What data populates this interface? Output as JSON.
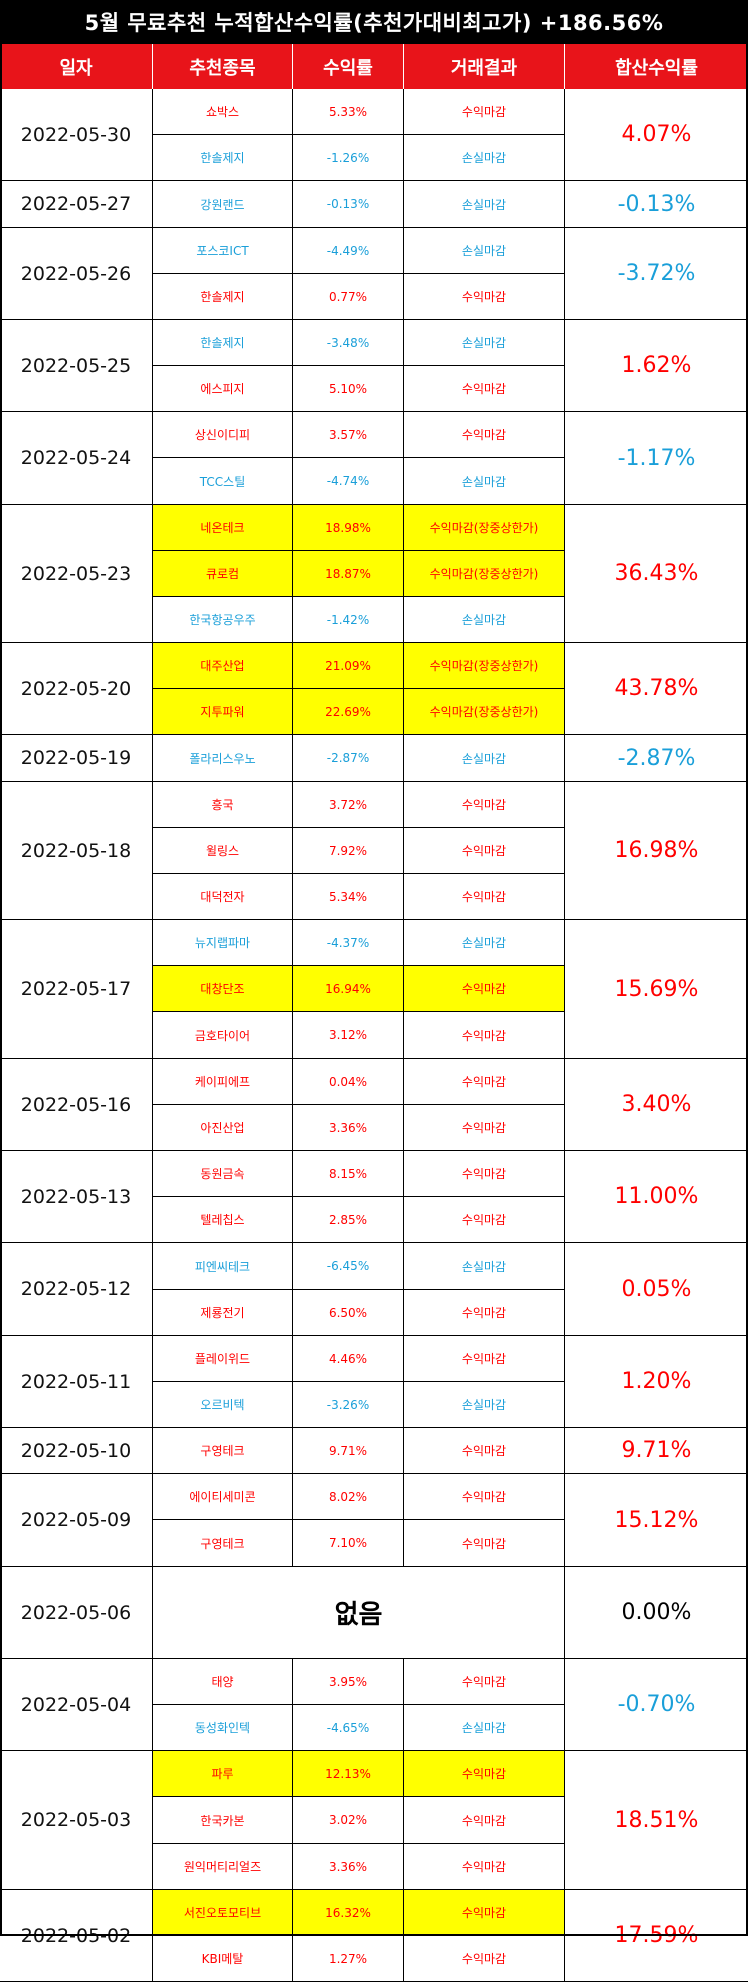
{
  "title": "5월 무료추천 누적합산수익률(추천가대비최고가) +186.56%",
  "headers": [
    "일자",
    "추천종목",
    "수익률",
    "거래결과",
    "합산수익률"
  ],
  "colors": {
    "header_bg": "#e8141a",
    "profit": "#ff0000",
    "loss": "#1a9fd9",
    "highlight": "#ffff00"
  },
  "groups": [
    {
      "date": "2022-05-30",
      "total": "4.07%",
      "total_color": "red",
      "rows": [
        {
          "stock": "쇼박스",
          "rate": "5.33%",
          "result": "수익마감",
          "color": "red",
          "hl": false
        },
        {
          "stock": "한솔제지",
          "rate": "-1.26%",
          "result": "손실마감",
          "color": "blue",
          "hl": false
        }
      ]
    },
    {
      "date": "2022-05-27",
      "total": "-0.13%",
      "total_color": "blue",
      "rows": [
        {
          "stock": "강원랜드",
          "rate": "-0.13%",
          "result": "손실마감",
          "color": "blue",
          "hl": false
        }
      ]
    },
    {
      "date": "2022-05-26",
      "total": "-3.72%",
      "total_color": "blue",
      "rows": [
        {
          "stock": "포스코ICT",
          "rate": "-4.49%",
          "result": "손실마감",
          "color": "blue",
          "hl": false
        },
        {
          "stock": "한솔제지",
          "rate": "0.77%",
          "result": "수익마감",
          "color": "red",
          "hl": false
        }
      ]
    },
    {
      "date": "2022-05-25",
      "total": "1.62%",
      "total_color": "red",
      "rows": [
        {
          "stock": "한솔제지",
          "rate": "-3.48%",
          "result": "손실마감",
          "color": "blue",
          "hl": false
        },
        {
          "stock": "에스피지",
          "rate": "5.10%",
          "result": "수익마감",
          "color": "red",
          "hl": false
        }
      ]
    },
    {
      "date": "2022-05-24",
      "total": "-1.17%",
      "total_color": "blue",
      "rows": [
        {
          "stock": "상신이디피",
          "rate": "3.57%",
          "result": "수익마감",
          "color": "red",
          "hl": false
        },
        {
          "stock": "TCC스틸",
          "rate": "-4.74%",
          "result": "손실마감",
          "color": "blue",
          "hl": false
        }
      ]
    },
    {
      "date": "2022-05-23",
      "total": "36.43%",
      "total_color": "red",
      "rows": [
        {
          "stock": "네온테크",
          "rate": "18.98%",
          "result": "수익마감(장중상한가)",
          "color": "red",
          "hl": true
        },
        {
          "stock": "큐로컴",
          "rate": "18.87%",
          "result": "수익마감(장중상한가)",
          "color": "red",
          "hl": true
        },
        {
          "stock": "한국항공우주",
          "rate": "-1.42%",
          "result": "손실마감",
          "color": "blue",
          "hl": false
        }
      ]
    },
    {
      "date": "2022-05-20",
      "total": "43.78%",
      "total_color": "red",
      "rows": [
        {
          "stock": "대주산업",
          "rate": "21.09%",
          "result": "수익마감(장중상한가)",
          "color": "red",
          "hl": true
        },
        {
          "stock": "지투파워",
          "rate": "22.69%",
          "result": "수익마감(장중상한가)",
          "color": "red",
          "hl": true
        }
      ]
    },
    {
      "date": "2022-05-19",
      "total": "-2.87%",
      "total_color": "blue",
      "rows": [
        {
          "stock": "폴라리스우노",
          "rate": "-2.87%",
          "result": "손실마감",
          "color": "blue",
          "hl": false
        }
      ]
    },
    {
      "date": "2022-05-18",
      "total": "16.98%",
      "total_color": "red",
      "rows": [
        {
          "stock": "흥국",
          "rate": "3.72%",
          "result": "수익마감",
          "color": "red",
          "hl": false
        },
        {
          "stock": "윌링스",
          "rate": "7.92%",
          "result": "수익마감",
          "color": "red",
          "hl": false
        },
        {
          "stock": "대덕전자",
          "rate": "5.34%",
          "result": "수익마감",
          "color": "red",
          "hl": false
        }
      ]
    },
    {
      "date": "2022-05-17",
      "total": "15.69%",
      "total_color": "red",
      "rows": [
        {
          "stock": "뉴지랩파마",
          "rate": "-4.37%",
          "result": "손실마감",
          "color": "blue",
          "hl": false
        },
        {
          "stock": "대창단조",
          "rate": "16.94%",
          "result": "수익마감",
          "color": "red",
          "hl": true
        },
        {
          "stock": "금호타이어",
          "rate": "3.12%",
          "result": "수익마감",
          "color": "red",
          "hl": false
        }
      ]
    },
    {
      "date": "2022-05-16",
      "total": "3.40%",
      "total_color": "red",
      "rows": [
        {
          "stock": "케이피에프",
          "rate": "0.04%",
          "result": "수익마감",
          "color": "red",
          "hl": false
        },
        {
          "stock": "아진산업",
          "rate": "3.36%",
          "result": "수익마감",
          "color": "red",
          "hl": false
        }
      ]
    },
    {
      "date": "2022-05-13",
      "total": "11.00%",
      "total_color": "red",
      "rows": [
        {
          "stock": "동원금속",
          "rate": "8.15%",
          "result": "수익마감",
          "color": "red",
          "hl": false
        },
        {
          "stock": "텔레칩스",
          "rate": "2.85%",
          "result": "수익마감",
          "color": "red",
          "hl": false
        }
      ]
    },
    {
      "date": "2022-05-12",
      "total": "0.05%",
      "total_color": "red",
      "rows": [
        {
          "stock": "피엔씨테크",
          "rate": "-6.45%",
          "result": "손실마감",
          "color": "blue",
          "hl": false
        },
        {
          "stock": "제룡전기",
          "rate": "6.50%",
          "result": "수익마감",
          "color": "red",
          "hl": false
        }
      ]
    },
    {
      "date": "2022-05-11",
      "total": "1.20%",
      "total_color": "red",
      "rows": [
        {
          "stock": "플레이위드",
          "rate": "4.46%",
          "result": "수익마감",
          "color": "red",
          "hl": false
        },
        {
          "stock": "오르비텍",
          "rate": "-3.26%",
          "result": "손실마감",
          "color": "blue",
          "hl": false
        }
      ]
    },
    {
      "date": "2022-05-10",
      "total": "9.71%",
      "total_color": "red",
      "rows": [
        {
          "stock": "구영테크",
          "rate": "9.71%",
          "result": "수익마감",
          "color": "red",
          "hl": false
        }
      ]
    },
    {
      "date": "2022-05-09",
      "total": "15.12%",
      "total_color": "red",
      "rows": [
        {
          "stock": "에이티세미콘",
          "rate": "8.02%",
          "result": "수익마감",
          "color": "red",
          "hl": false
        },
        {
          "stock": "구영테크",
          "rate": "7.10%",
          "result": "수익마감",
          "color": "red",
          "hl": false
        }
      ]
    },
    {
      "date": "2022-05-06",
      "total": "0.00%",
      "total_color": "black",
      "none": "없음",
      "rows": []
    },
    {
      "date": "2022-05-04",
      "total": "-0.70%",
      "total_color": "blue",
      "rows": [
        {
          "stock": "태양",
          "rate": "3.95%",
          "result": "수익마감",
          "color": "red",
          "hl": false
        },
        {
          "stock": "동성화인텍",
          "rate": "-4.65%",
          "result": "손실마감",
          "color": "blue",
          "hl": false
        }
      ]
    },
    {
      "date": "2022-05-03",
      "total": "18.51%",
      "total_color": "red",
      "rows": [
        {
          "stock": "파루",
          "rate": "12.13%",
          "result": "수익마감",
          "color": "red",
          "hl": true
        },
        {
          "stock": "한국카본",
          "rate": "3.02%",
          "result": "수익마감",
          "color": "red",
          "hl": false
        },
        {
          "stock": "원익머티리얼즈",
          "rate": "3.36%",
          "result": "수익마감",
          "color": "red",
          "hl": false
        }
      ]
    },
    {
      "date": "2022-05-02",
      "total": "17.59%",
      "total_color": "red",
      "rows": [
        {
          "stock": "서진오토모티브",
          "rate": "16.32%",
          "result": "수익마감",
          "color": "red",
          "hl": true
        },
        {
          "stock": "KBI메탈",
          "rate": "1.27%",
          "result": "수익마감",
          "color": "red",
          "hl": false
        }
      ]
    }
  ]
}
